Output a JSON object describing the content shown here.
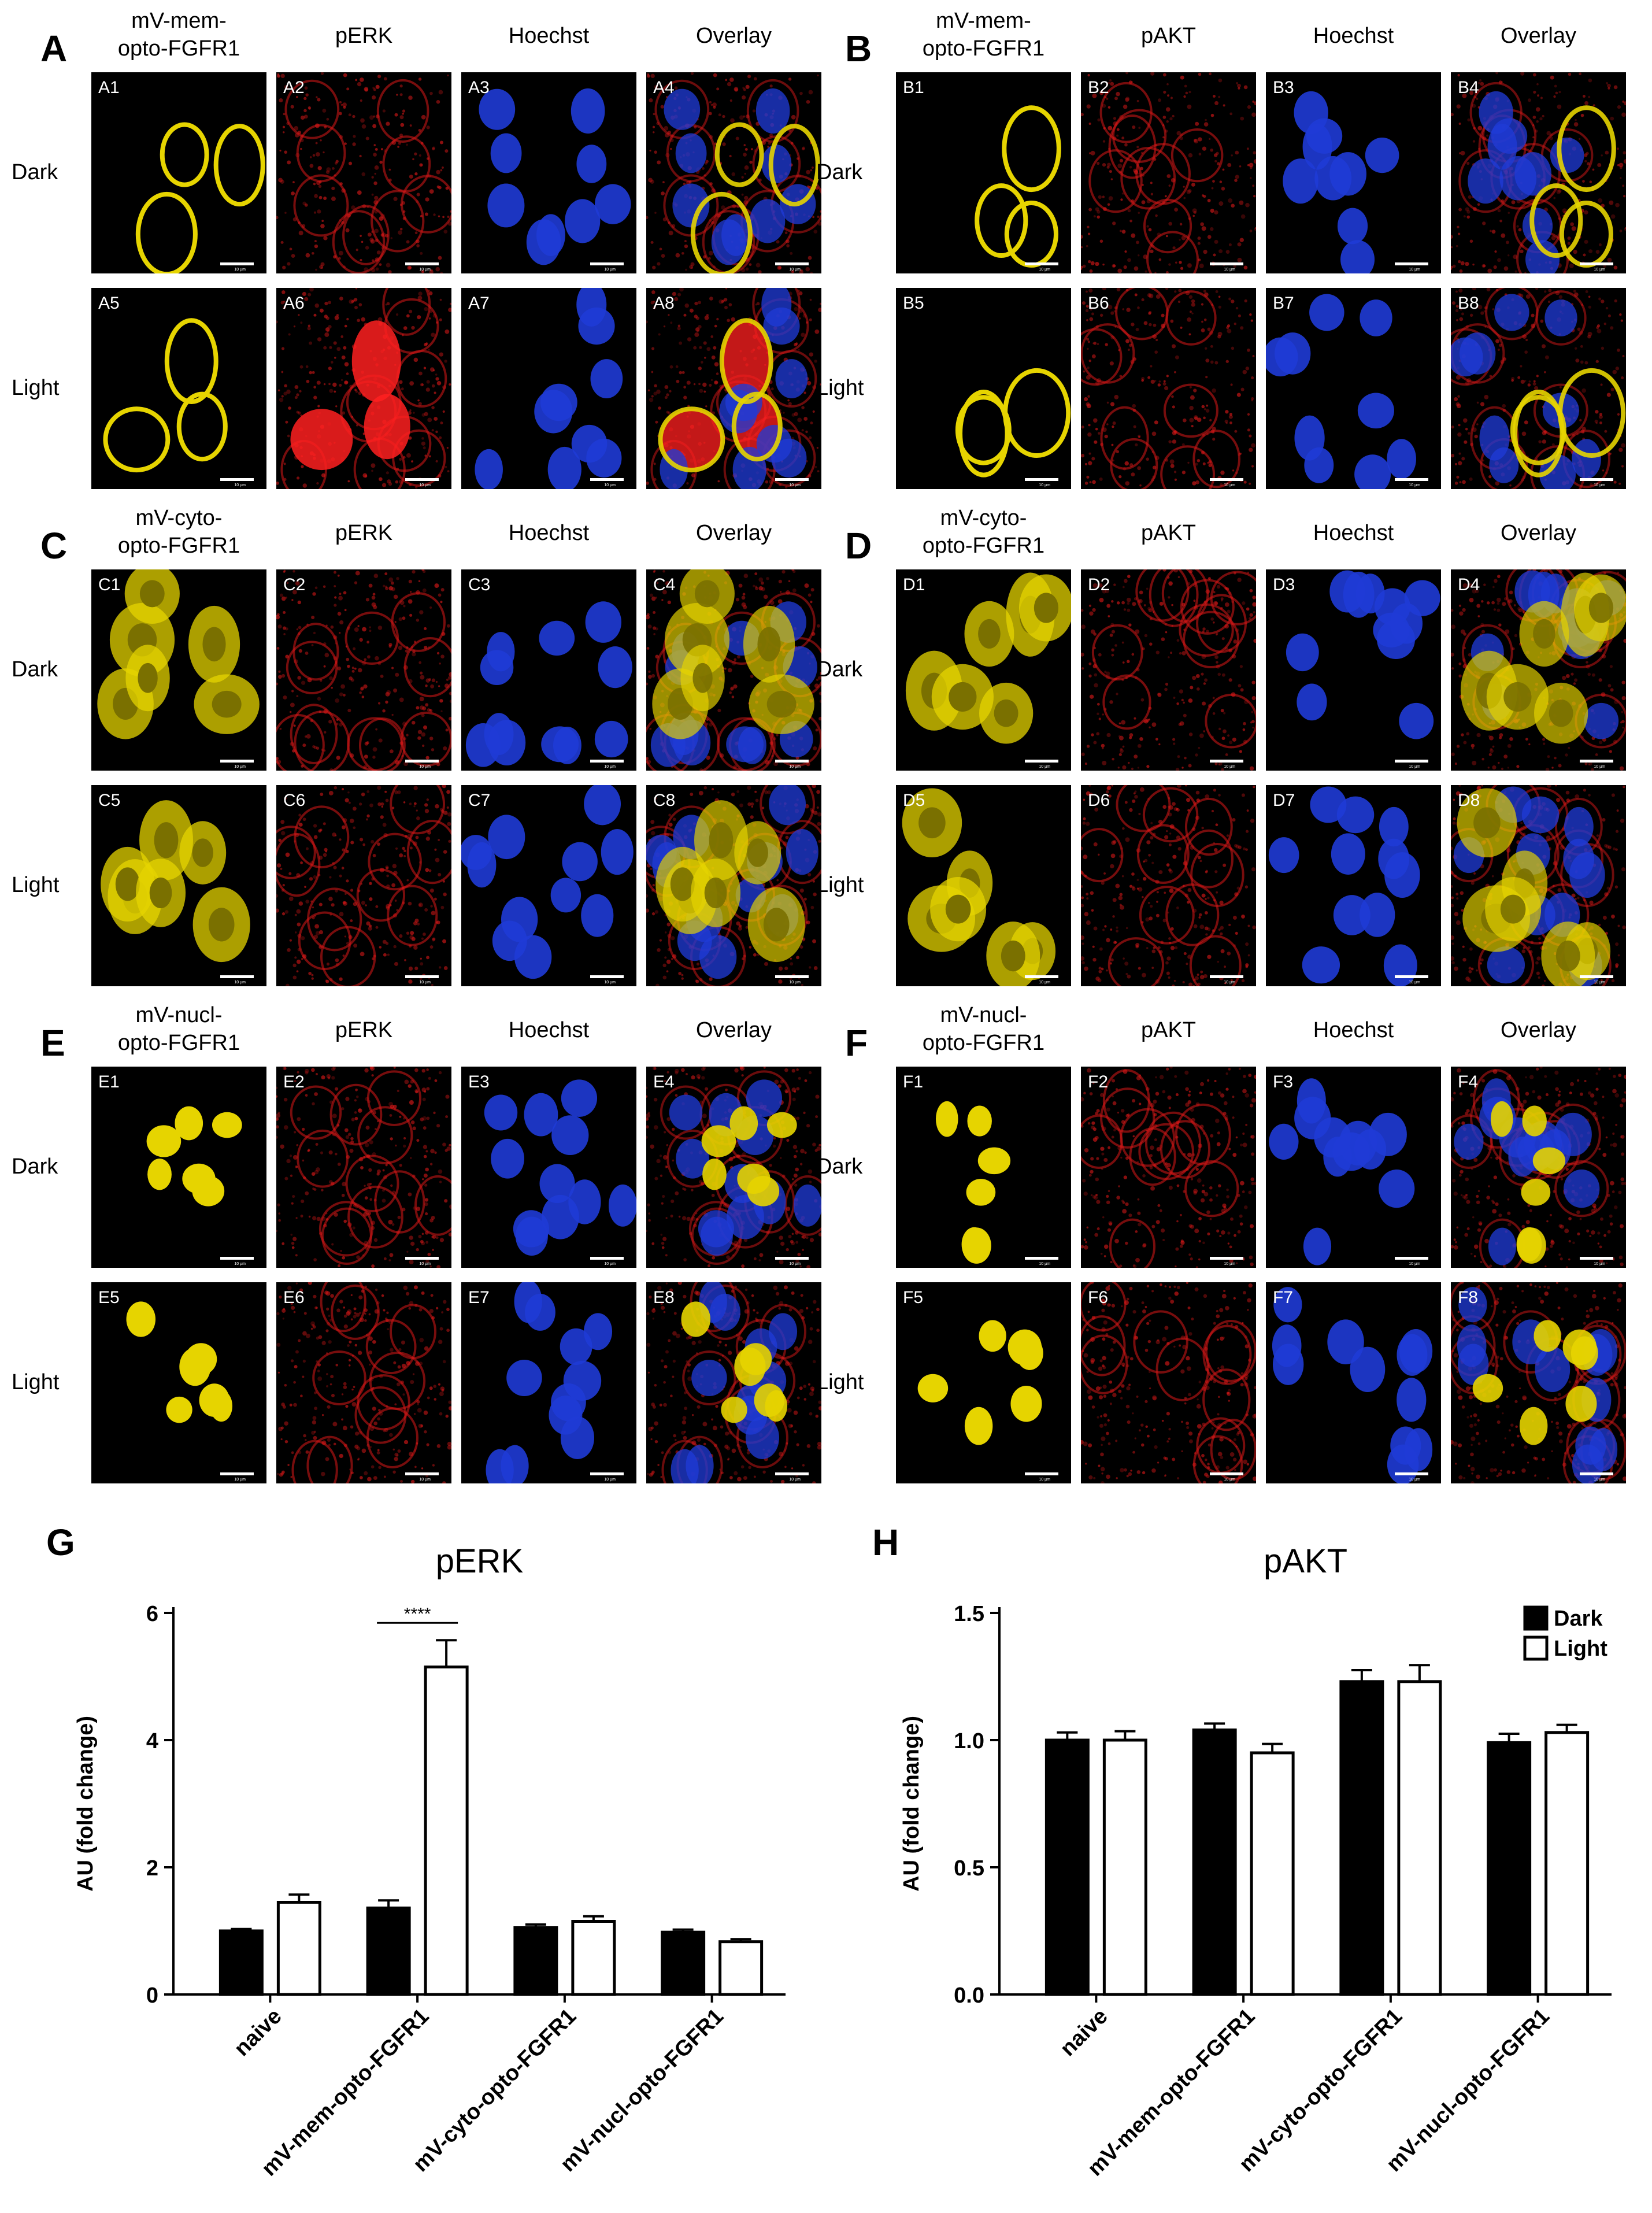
{
  "figure": {
    "panels": [
      {
        "letter": "A",
        "marker": "mV-mem-\nopto-FGFR1",
        "readout": "pERK",
        "stain": "Hoechst",
        "overlay": "Overlay",
        "rows": [
          "Dark",
          "Light"
        ],
        "tiles": [
          "A1",
          "A2",
          "A3",
          "A4",
          "A5",
          "A6",
          "A7",
          "A8"
        ],
        "pattern": "membrane",
        "cells": "few",
        "brightRed": [
          false,
          true
        ]
      },
      {
        "letter": "B",
        "marker": "mV-mem-\nopto-FGFR1",
        "readout": "pAKT",
        "stain": "Hoechst",
        "overlay": "Overlay",
        "rows": [
          "Dark",
          "Light"
        ],
        "tiles": [
          "B1",
          "B2",
          "B3",
          "B4",
          "B5",
          "B6",
          "B7",
          "B8"
        ],
        "pattern": "membrane",
        "cells": "few",
        "brightRed": [
          false,
          false
        ]
      },
      {
        "letter": "C",
        "marker": "mV-cyto-\nopto-FGFR1",
        "readout": "pERK",
        "stain": "Hoechst",
        "overlay": "Overlay",
        "rows": [
          "Dark",
          "Light"
        ],
        "tiles": [
          "C1",
          "C2",
          "C3",
          "C4",
          "C5",
          "C6",
          "C7",
          "C8"
        ],
        "pattern": "cyto",
        "cells": "many",
        "brightRed": [
          false,
          false
        ]
      },
      {
        "letter": "D",
        "marker": "mV-cyto-\nopto-FGFR1",
        "readout": "pAKT",
        "stain": "Hoechst",
        "overlay": "Overlay",
        "rows": [
          "Dark",
          "Light"
        ],
        "tiles": [
          "D1",
          "D2",
          "D3",
          "D4",
          "D5",
          "D6",
          "D7",
          "D8"
        ],
        "pattern": "cyto",
        "cells": "many",
        "brightRed": [
          false,
          false
        ]
      },
      {
        "letter": "E",
        "marker": "mV-nucl-\nopto-FGFR1",
        "readout": "pERK",
        "stain": "Hoechst",
        "overlay": "Overlay",
        "rows": [
          "Dark",
          "Light"
        ],
        "tiles": [
          "E1",
          "E2",
          "E3",
          "E4",
          "E5",
          "E6",
          "E7",
          "E8"
        ],
        "pattern": "nucl",
        "cells": "many",
        "brightRed": [
          false,
          false
        ]
      },
      {
        "letter": "F",
        "marker": "mV-nucl-\nopto-FGFR1",
        "readout": "pAKT",
        "stain": "Hoechst",
        "overlay": "Overlay",
        "rows": [
          "Dark",
          "Light"
        ],
        "tiles": [
          "F1",
          "F2",
          "F3",
          "F4",
          "F5",
          "F6",
          "F7",
          "F8"
        ],
        "pattern": "nucl",
        "cells": "many",
        "brightRed": [
          false,
          false
        ]
      }
    ],
    "scale_text": "10 µm",
    "colors": {
      "marker": "#e6d400",
      "readout": "#d81818",
      "stain": "#1f3bd6",
      "background": "#000000"
    }
  },
  "chart_data": [
    {
      "letter": "G",
      "type": "bar",
      "title": "pERK",
      "ylabel": "AU (fold change)",
      "xlabel": "",
      "ylim": [
        0,
        6
      ],
      "yticks": [
        "0",
        "2",
        "4",
        "6"
      ],
      "categories": [
        "naive",
        "mV-mem-opto-FGFR1",
        "mV-cyto-opto-FGFR1",
        "mV-nucl-opto-FGFR1"
      ],
      "series": [
        {
          "name": "Dark",
          "color": "#000000",
          "values": [
            1.0,
            1.36,
            1.05,
            0.98
          ],
          "errors": [
            0.03,
            0.12,
            0.05,
            0.04
          ]
        },
        {
          "name": "Light",
          "color": "#ffffff",
          "values": [
            1.45,
            5.15,
            1.15,
            0.83
          ],
          "errors": [
            0.12,
            0.42,
            0.08,
            0.04
          ]
        }
      ],
      "annotation": {
        "text": "****",
        "category": 1
      },
      "legend": "none"
    },
    {
      "letter": "H",
      "type": "bar",
      "title": "pAKT",
      "ylabel": "AU (fold change)",
      "xlabel": "",
      "ylim": [
        0,
        1.5
      ],
      "yticks": [
        "0.0",
        "0.5",
        "1.0",
        "1.5"
      ],
      "categories": [
        "naive",
        "mV-mem-opto-FGFR1",
        "mV-cyto-opto-FGFR1",
        "mV-nucl-opto-FGFR1"
      ],
      "series": [
        {
          "name": "Dark",
          "color": "#000000",
          "values": [
            1.0,
            1.04,
            1.23,
            0.99
          ],
          "errors": [
            0.03,
            0.025,
            0.045,
            0.035
          ]
        },
        {
          "name": "Light",
          "color": "#ffffff",
          "values": [
            1.0,
            0.95,
            1.23,
            1.03
          ],
          "errors": [
            0.035,
            0.035,
            0.065,
            0.03
          ]
        }
      ],
      "legend": "top-right"
    }
  ]
}
